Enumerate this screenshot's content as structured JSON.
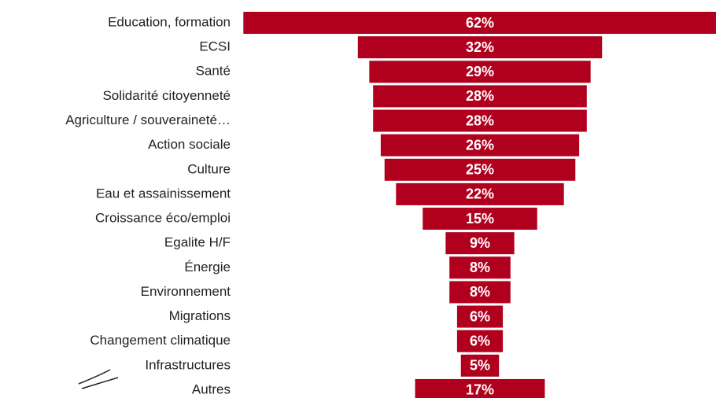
{
  "chart_data": {
    "type": "funnel",
    "categories": [
      "Education, formation",
      "ECSI",
      "Santé",
      "Solidarité citoyenneté",
      "Agriculture / souveraineté…",
      "Action sociale",
      "Culture",
      "Eau et assainissement",
      "Croissance éco/emploi",
      "Egalite H/F",
      "Énergie",
      "Environnement",
      "Migrations",
      "Changement climatique",
      "Infrastructures",
      "Autres"
    ],
    "values": [
      62,
      32,
      29,
      28,
      28,
      26,
      25,
      22,
      15,
      9,
      8,
      8,
      6,
      6,
      5,
      17
    ],
    "value_labels": [
      "62%",
      "32%",
      "29%",
      "28%",
      "28%",
      "26%",
      "25%",
      "22%",
      "15%",
      "9%",
      "8%",
      "8%",
      "6%",
      "6%",
      "5%",
      "17%"
    ],
    "color": "#b0001e"
  }
}
